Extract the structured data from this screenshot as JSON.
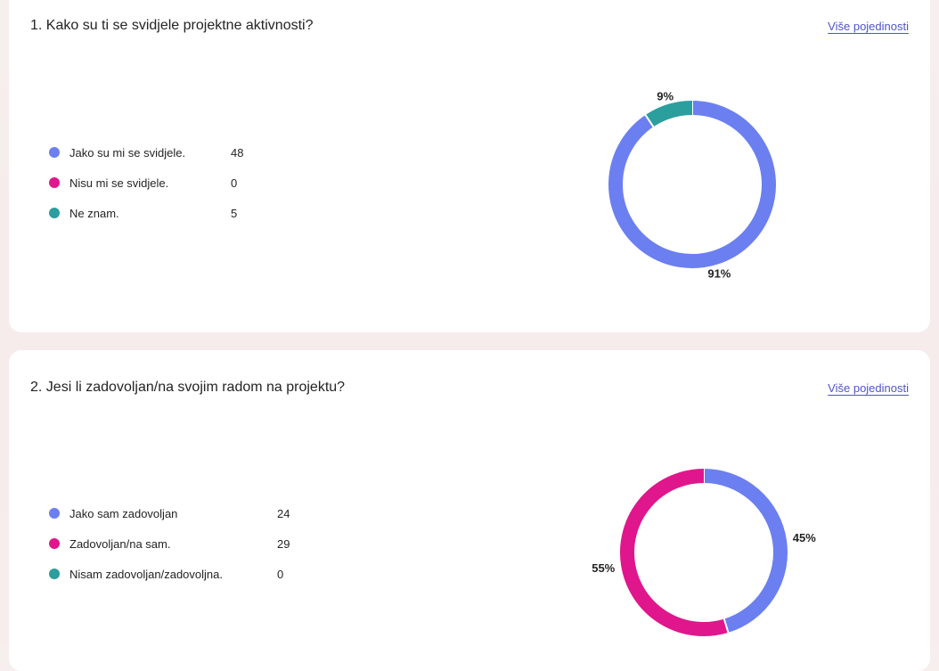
{
  "colors": {
    "series1": "#6b7ff0",
    "series2": "#e0168c",
    "series3": "#2b9e9e",
    "link": "#4f54c8"
  },
  "questions": [
    {
      "title": "1. Kako su ti se svidjele projektne aktivnosti?",
      "details_label": "Više pojedinosti",
      "options": [
        {
          "label": "Jako su mi se svidjele.",
          "count": "48"
        },
        {
          "label": "Nisu mi se svidjele.",
          "count": "0"
        },
        {
          "label": "Ne znam.",
          "count": "5"
        }
      ]
    },
    {
      "title": "2. Jesi li zadovoljan/na svojim radom na projektu?",
      "details_label": "Više pojedinosti",
      "options": [
        {
          "label": "Jako sam zadovoljan",
          "count": "24"
        },
        {
          "label": "Zadovoljan/na sam.",
          "count": "29"
        },
        {
          "label": "Nisam zadovoljan/zadovoljna.",
          "count": "0"
        }
      ]
    }
  ],
  "chart_data": [
    {
      "type": "pie",
      "donut": true,
      "categories": [
        "Jako su mi se svidjele.",
        "Nisu mi se svidjele.",
        "Ne znam."
      ],
      "values": [
        48,
        0,
        5
      ],
      "data_labels": [
        "91%",
        "",
        "9%"
      ]
    },
    {
      "type": "pie",
      "donut": true,
      "categories": [
        "Jako sam zadovoljan",
        "Zadovoljan/na sam.",
        "Nisam zadovoljan/zadovoljna."
      ],
      "values": [
        24,
        29,
        0
      ],
      "data_labels": [
        "45%",
        "55%",
        ""
      ]
    }
  ]
}
